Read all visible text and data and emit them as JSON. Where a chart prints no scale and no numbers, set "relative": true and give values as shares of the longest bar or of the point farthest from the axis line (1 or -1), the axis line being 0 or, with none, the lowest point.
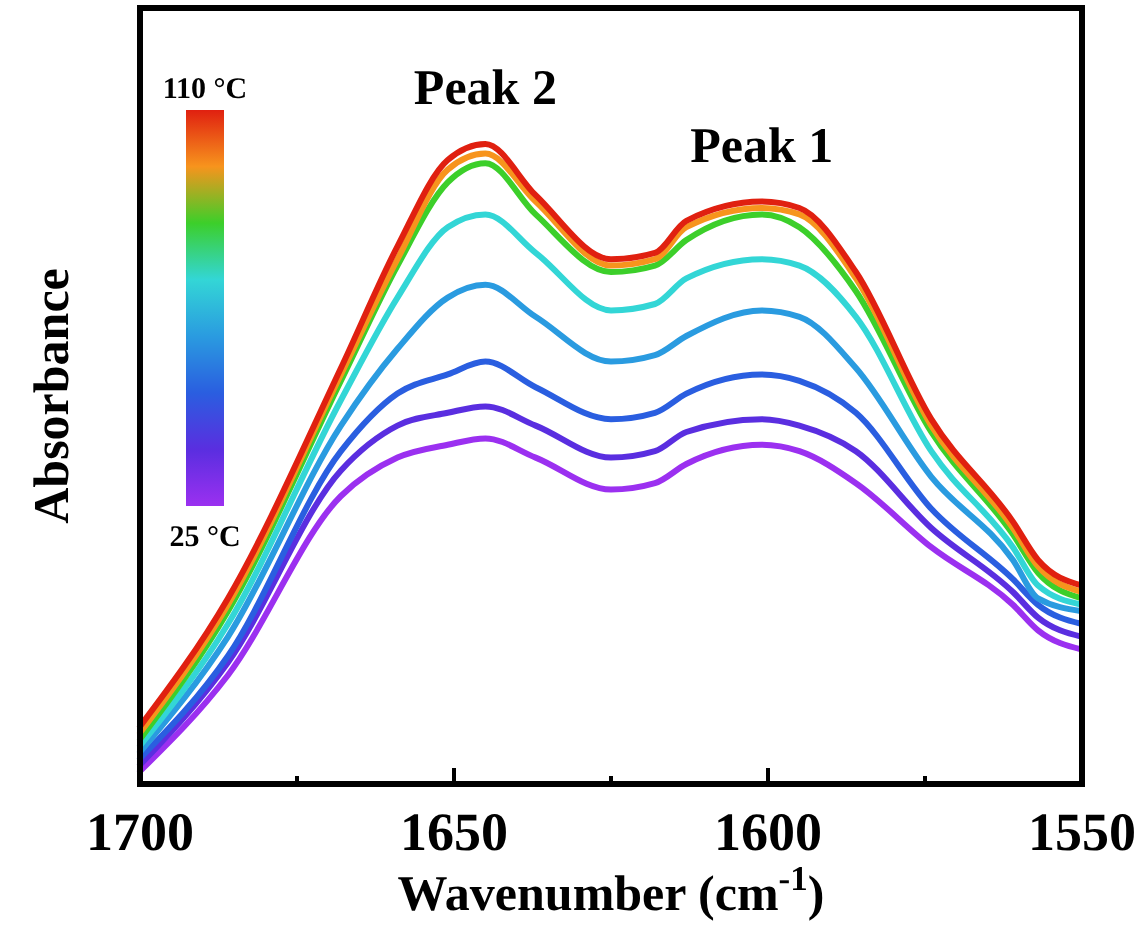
{
  "chart_data": {
    "type": "line",
    "relative": true,
    "xlabel": "Wavenumber (cm$^{-1}$)",
    "ylabel": "Absorbance",
    "x": [
      1700,
      1686,
      1668,
      1659,
      1651,
      1645,
      1637,
      1625,
      1618,
      1613,
      1601,
      1595,
      1586,
      1574,
      1561,
      1557,
      1550
    ],
    "xlim": [
      1700,
      1550
    ],
    "xticks": [
      1700,
      {
        "value": 1675,
        "label": null
      },
      1650,
      {
        "value": 1625,
        "label": null
      },
      1600,
      {
        "value": 1575,
        "label": null
      },
      1550
    ],
    "annotations": [
      {
        "text": "Peak 2",
        "x": 1645,
        "y": 1
      },
      {
        "text": "Peak 1",
        "x": 1601,
        "y": 0.91
      },
      "110 °C",
      "25 °C"
    ],
    "grid": false,
    "series": [
      {
        "color": "#9b30f0",
        "values": [
          0.02,
          0.17,
          0.45,
          0.51,
          0.53,
          0.54,
          0.51,
          0.46,
          0.47,
          0.5,
          0.53,
          0.52,
          0.47,
          0.37,
          0.28,
          0.24,
          0.21
        ]
      },
      {
        "color": "#5a2ee0",
        "values": [
          0.03,
          0.19,
          0.49,
          0.56,
          0.58,
          0.59,
          0.56,
          0.51,
          0.52,
          0.55,
          0.57,
          0.56,
          0.52,
          0.4,
          0.3,
          0.26,
          0.23
        ]
      },
      {
        "color": "#2a5ee0",
        "values": [
          0.04,
          0.2,
          0.52,
          0.61,
          0.64,
          0.66,
          0.62,
          0.57,
          0.58,
          0.61,
          0.64,
          0.63,
          0.58,
          0.43,
          0.32,
          0.28,
          0.25
        ]
      },
      {
        "color": "#2a9be0",
        "values": [
          0.05,
          0.23,
          0.56,
          0.68,
          0.76,
          0.78,
          0.73,
          0.66,
          0.67,
          0.7,
          0.74,
          0.73,
          0.65,
          0.48,
          0.35,
          0.29,
          0.27
        ]
      },
      {
        "color": "#33d6d6",
        "values": [
          0.06,
          0.25,
          0.6,
          0.76,
          0.87,
          0.89,
          0.83,
          0.74,
          0.75,
          0.79,
          0.82,
          0.81,
          0.73,
          0.52,
          0.37,
          0.31,
          0.28
        ]
      },
      {
        "color": "#3ccf2a",
        "values": [
          0.07,
          0.27,
          0.63,
          0.81,
          0.94,
          0.97,
          0.89,
          0.8,
          0.81,
          0.85,
          0.89,
          0.87,
          0.77,
          0.55,
          0.39,
          0.33,
          0.29
        ]
      },
      {
        "color": "#f7941d",
        "values": [
          0.08,
          0.28,
          0.64,
          0.82,
          0.96,
          0.985,
          0.91,
          0.81,
          0.82,
          0.87,
          0.9,
          0.89,
          0.79,
          0.56,
          0.4,
          0.34,
          0.3
        ]
      },
      {
        "color": "#e02010",
        "values": [
          0.09,
          0.29,
          0.65,
          0.84,
          0.975,
          1.0,
          0.92,
          0.82,
          0.83,
          0.88,
          0.91,
          0.9,
          0.8,
          0.57,
          0.41,
          0.35,
          0.31
        ]
      }
    ]
  }
}
